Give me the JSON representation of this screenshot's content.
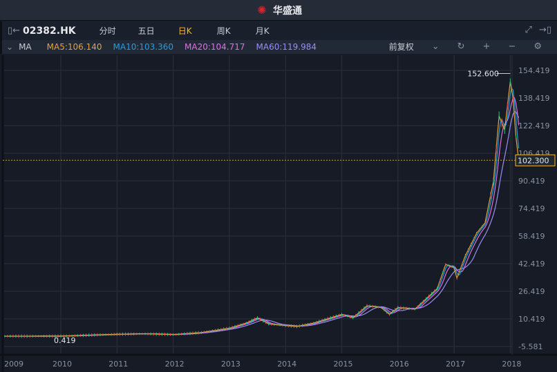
{
  "app": {
    "title": "华盛通",
    "logo_icon": "huashengtong-logo"
  },
  "toolbar": {
    "symbol": "02382.HK",
    "periods": [
      {
        "label": "分时"
      },
      {
        "label": "五日"
      },
      {
        "label": "日K"
      },
      {
        "label": "周K"
      },
      {
        "label": "月K"
      }
    ],
    "active_period": "日K"
  },
  "ma_bar": {
    "label": "MA",
    "ma5": "MA5:106.140",
    "ma10": "MA10:103.360",
    "ma20": "MA20:104.717",
    "ma60": "MA60:119.984",
    "adjust": "前复权",
    "colors": {
      "ma5": "#e8a23a",
      "ma10": "#1ea0e0",
      "ma20": "#e070e0",
      "ma60": "#9c8cf8"
    }
  },
  "chart_data": {
    "type": "line",
    "y_ticks": [
      "154.419",
      "138.419",
      "122.419",
      "106.419",
      "90.419",
      "74.419",
      "58.419",
      "42.419",
      "26.419",
      "10.419",
      "-5.581"
    ],
    "x_ticks": [
      "2009",
      "2010",
      "2011",
      "2012",
      "2013",
      "2014",
      "2015",
      "2016",
      "2017",
      "2018"
    ],
    "max_label": "152.600",
    "min_label": "0.419",
    "current_price": "102.300",
    "series": [
      {
        "name": "price",
        "x": [
          2009.0,
          2009.4,
          2010,
          2010.5,
          2011,
          2011.5,
          2012,
          2012.5,
          2013,
          2013.3,
          2013.5,
          2013.7,
          2014,
          2014.2,
          2014.5,
          2014.8,
          2015,
          2015.2,
          2015.45,
          2015.7,
          2015.85,
          2016,
          2016.3,
          2016.5,
          2016.7,
          2016.85,
          2017,
          2017.05,
          2017.2,
          2017.4,
          2017.55,
          2017.7,
          2017.8,
          2017.9,
          2018.0,
          2018.05,
          2018.1,
          2018.15
        ],
        "y": [
          0.4,
          0.4,
          0.42,
          1,
          1.5,
          1.8,
          1.3,
          2.5,
          5,
          8,
          11,
          7.5,
          6.5,
          6,
          8,
          11,
          13,
          11,
          18,
          17,
          13,
          17,
          16,
          22,
          28,
          42,
          40,
          34,
          47,
          60,
          66,
          90,
          128,
          120,
          148,
          138,
          116,
          102.3
        ]
      }
    ]
  }
}
